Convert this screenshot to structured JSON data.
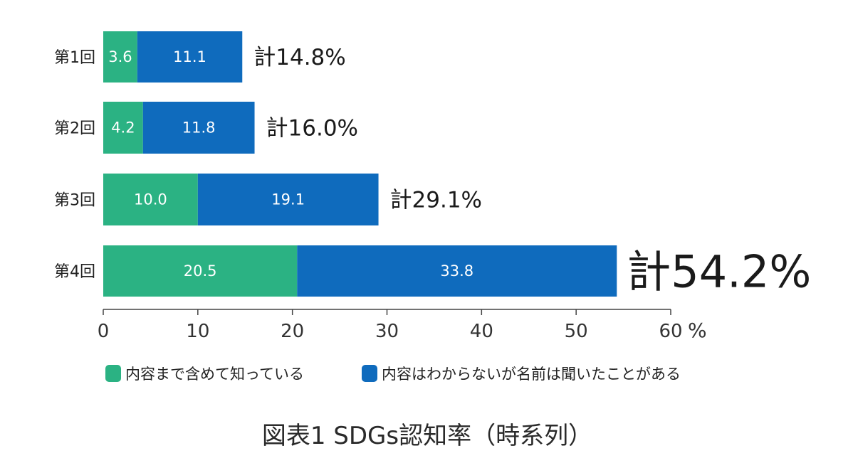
{
  "chart_data": {
    "type": "bar",
    "orientation": "horizontal",
    "stacked": true,
    "title": "図表1 SDGs認知率（時系列）",
    "categories": [
      "第1回",
      "第2回",
      "第3回",
      "第4回"
    ],
    "series": [
      {
        "name": "内容まで含めて知っている",
        "color": "#2bb283",
        "values": [
          3.6,
          4.2,
          10.0,
          20.5
        ],
        "value_labels": [
          "3.6",
          "4.2",
          "10.0",
          "20.5"
        ]
      },
      {
        "name": "内容はわからないが名前は聞いたことがある",
        "color": "#0f6bbd",
        "values": [
          11.1,
          11.8,
          19.1,
          33.8
        ],
        "value_labels": [
          "11.1",
          "11.8",
          "19.1",
          "33.8"
        ]
      }
    ],
    "totals": [
      "計14.8%",
      "計16.0%",
      "計29.1%",
      "計54.2%"
    ],
    "xlim": [
      0,
      60
    ],
    "xticks": [
      0,
      10,
      20,
      30,
      40,
      50,
      60
    ],
    "xunit": "%",
    "grid": false,
    "legend_position": "bottom"
  }
}
